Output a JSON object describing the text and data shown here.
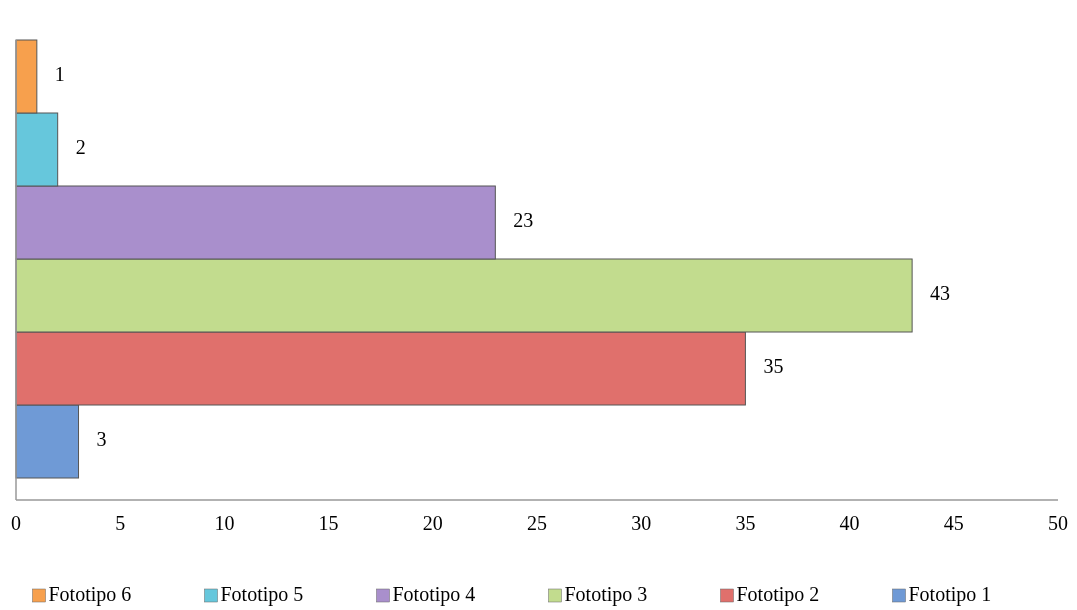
{
  "chart_data": {
    "type": "bar",
    "orientation": "horizontal",
    "categories": [
      null
    ],
    "series": [
      {
        "name": "Fototipo 1",
        "color": "#6f9ad6",
        "values": [
          3
        ]
      },
      {
        "name": "Fototipo 2",
        "color": "#e0706c",
        "values": [
          35
        ]
      },
      {
        "name": "Fototipo 3",
        "color": "#c2dc8e",
        "values": [
          43
        ]
      },
      {
        "name": "Fototipo 4",
        "color": "#a98fcc",
        "values": [
          23
        ]
      },
      {
        "name": "Fototipo 5",
        "color": "#66c7dc",
        "values": [
          2
        ]
      },
      {
        "name": "Fototipo 6",
        "color": "#f7a04d",
        "values": [
          1
        ]
      }
    ],
    "xlim": [
      0,
      50
    ],
    "xticks": [
      0,
      5,
      10,
      15,
      20,
      25,
      30,
      35,
      40,
      45,
      50
    ],
    "data_labels": true,
    "grid": false,
    "legend": "bottom"
  }
}
